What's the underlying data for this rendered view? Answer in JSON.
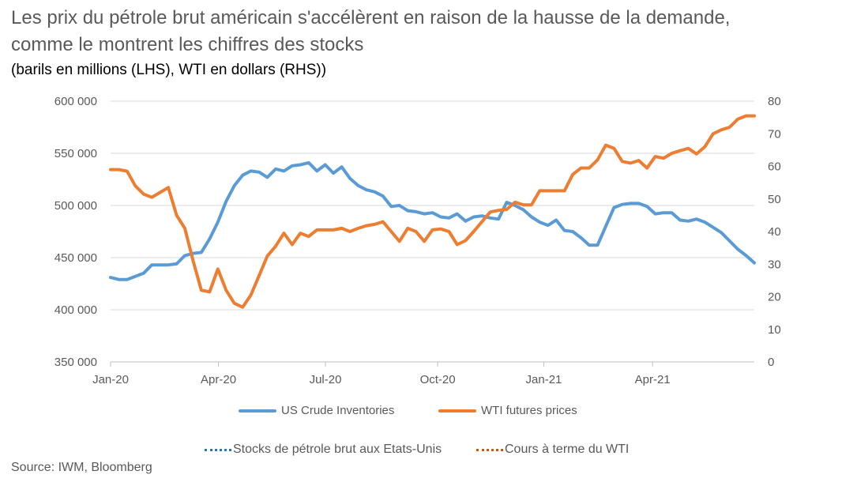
{
  "title_lines": [
    "Les prix du pétrole brut américain s'accélèrent en raison de la hausse de la demande,",
    "comme le montrent les chiffres des stocks"
  ],
  "subtitle": "(barils en millions (LHS), WTI en dollars (RHS))",
  "source": "Source: IWM, Bloomberg",
  "legend_secondary": [
    {
      "label": "Stocks de pétrole brut aux Etats-Unis",
      "color": "#2e75b6"
    },
    {
      "label": "Cours à terme du WTI",
      "color": "#c55a11"
    }
  ],
  "chart_data": {
    "type": "line",
    "grid": true,
    "legend_placement": "bottom",
    "x_range_weeks": [
      0,
      74
    ],
    "x_ticks": [
      {
        "label": "Jan-20",
        "week": 0
      },
      {
        "label": "Apr-20",
        "week": 12.4
      },
      {
        "label": "Jul-20",
        "week": 24.7
      },
      {
        "label": "Oct-20",
        "week": 37.6
      },
      {
        "label": "Jan-21",
        "week": 49.8
      },
      {
        "label": "Apr-21",
        "week": 62.3
      }
    ],
    "y_left": {
      "lim": [
        350000,
        600000
      ],
      "ticks": [
        350000,
        400000,
        450000,
        500000,
        550000,
        600000
      ],
      "tick_labels": [
        "350 000",
        "400 000",
        "450 000",
        "500 000",
        "550 000",
        "600 000"
      ]
    },
    "y_right": {
      "lim": [
        0,
        80
      ],
      "ticks": [
        0,
        10,
        20,
        30,
        40,
        50,
        60,
        70,
        80
      ],
      "tick_labels": [
        "0",
        "10",
        "20",
        "30",
        "40",
        "50",
        "60",
        "70",
        "80"
      ]
    },
    "series": [
      {
        "name": "US Crude Inventories",
        "axis": "left",
        "color": "#5b9bd5",
        "values": [
          431000,
          429000,
          429000,
          432000,
          435000,
          443000,
          443000,
          443000,
          444000,
          452000,
          454000,
          455000,
          468000,
          484000,
          504000,
          519000,
          529000,
          533000,
          532000,
          527000,
          535000,
          533000,
          538000,
          539000,
          541000,
          533000,
          539000,
          531000,
          537000,
          526000,
          519000,
          515000,
          513000,
          509000,
          499000,
          500000,
          495000,
          494000,
          492000,
          493000,
          489000,
          488000,
          492000,
          485000,
          489000,
          490000,
          488000,
          487000,
          503000,
          500000,
          496000,
          489000,
          484000,
          481000,
          486000,
          476000,
          475000,
          469000,
          462000,
          462000,
          480000,
          498000,
          501000,
          502000,
          502000,
          499000,
          492000,
          493000,
          493000,
          486000,
          485000,
          487000,
          484000,
          479000,
          474000,
          466000,
          458000,
          452000,
          445000
        ]
      },
      {
        "name": "WTI futures prices",
        "axis": "right",
        "color": "#ed7d31",
        "values": [
          59,
          59,
          58.5,
          54,
          51.5,
          50.5,
          52,
          53.5,
          45,
          41,
          31,
          22,
          21.5,
          28.5,
          22,
          18,
          16.8,
          20.5,
          26.5,
          32.5,
          35.5,
          39.5,
          36,
          39.5,
          38.5,
          40.5,
          40.5,
          40.5,
          41,
          40,
          41,
          41.8,
          42.2,
          43,
          40,
          37,
          41,
          40,
          37,
          40.5,
          40.8,
          40,
          36,
          37.2,
          40,
          43,
          46,
          46.5,
          46.8,
          49,
          48.2,
          48.2,
          52.5,
          52.5,
          52.5,
          52.5,
          57.5,
          59.5,
          59.5,
          62,
          66.5,
          65.5,
          61.5,
          61,
          61.8,
          59.5,
          63,
          62.5,
          64,
          64.8,
          65.5,
          63.8,
          66,
          70,
          71.2,
          72,
          74.5,
          75.5,
          75.5
        ]
      }
    ]
  }
}
